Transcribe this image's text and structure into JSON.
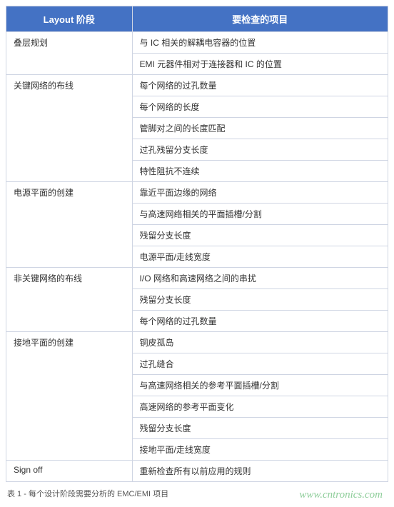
{
  "table": {
    "headers": [
      "Layout 阶段",
      "要检查的项目"
    ],
    "sections": [
      {
        "phase": "叠层规划",
        "items": [
          "与 IC 相关的解耦电容器的位置",
          "EMI 元器件相对于连接器和 IC 的位置"
        ]
      },
      {
        "phase": "关键网络的布线",
        "items": [
          "每个网络的过孔数量",
          "每个网络的长度",
          "管脚对之间的长度匹配",
          "过孔残留分支长度",
          "特性阻抗不连续"
        ]
      },
      {
        "phase": "电源平面的创建",
        "items": [
          "靠近平面边缘的网络",
          "与高速网络相关的平面插槽/分割",
          "残留分支长度",
          "电源平面/走线宽度"
        ]
      },
      {
        "phase": "非关键网络的布线",
        "items": [
          "I/O 网络和高速网络之间的串扰",
          "残留分支长度",
          "每个网络的过孔数量"
        ]
      },
      {
        "phase": "接地平面的创建",
        "items": [
          "铜皮孤岛",
          "过孔缝合",
          "与高速网络相关的参考平面插槽/分割",
          "高速网络的参考平面变化",
          "残留分支长度",
          "接地平面/走线宽度"
        ]
      },
      {
        "phase": "Sign off",
        "items": [
          "重新检查所有以前应用的规则"
        ]
      }
    ],
    "header_bg": "#4472c4",
    "header_color": "#ffffff",
    "border_color": "#cfd5e3"
  },
  "caption": "表 1 - 每个设计阶段需要分析的 EMC/EMI 项目",
  "watermark": "www.cntronics.com"
}
